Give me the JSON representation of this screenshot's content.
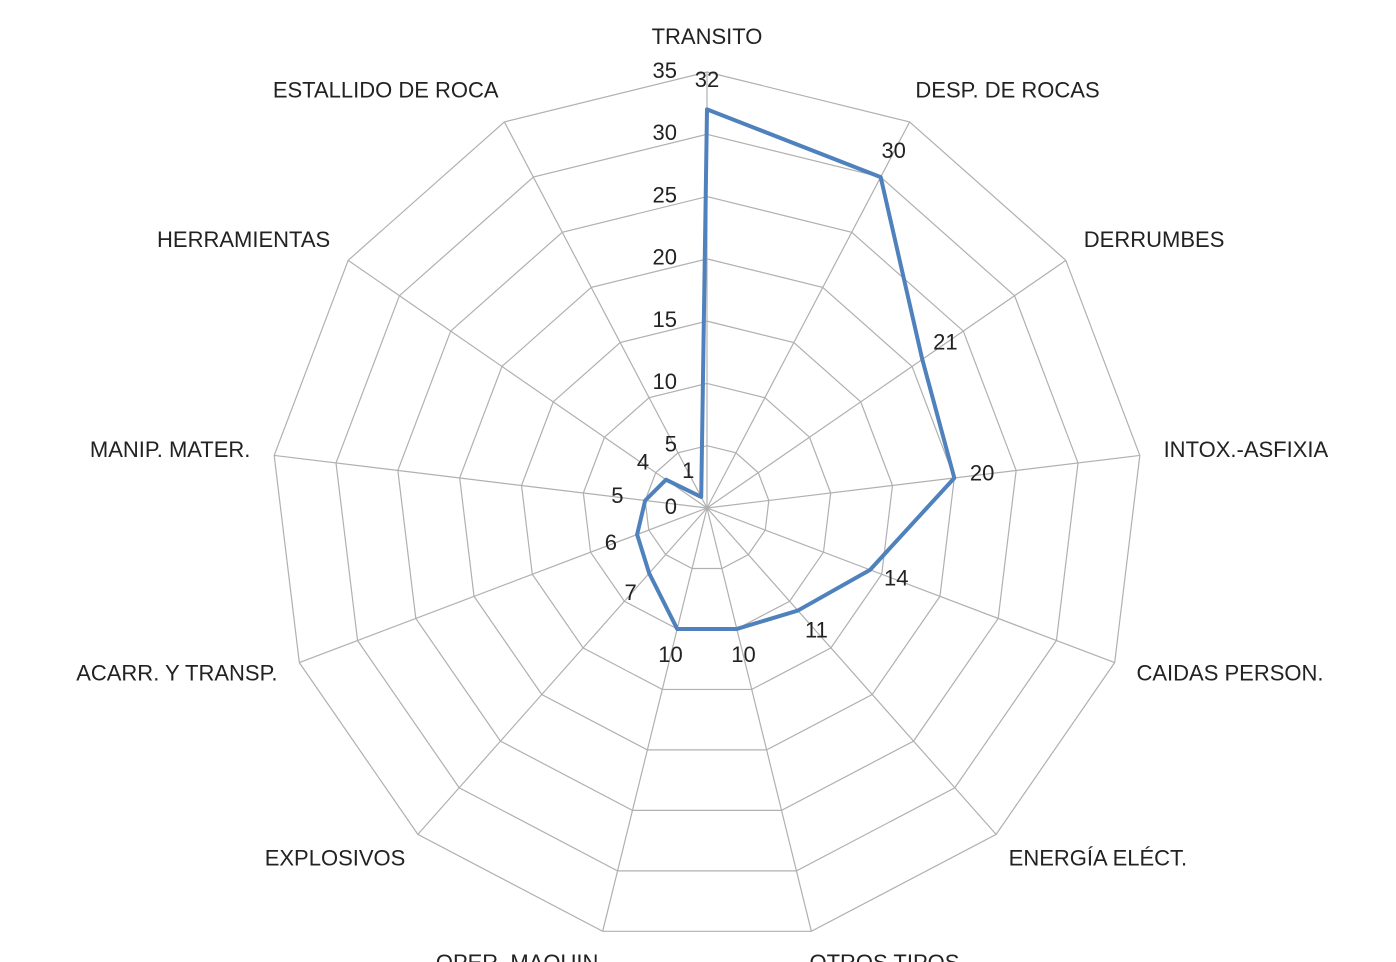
{
  "chart_data": {
    "type": "radar",
    "categories": [
      "TRANSITO",
      "DESP. DE ROCAS",
      "DERRUMBES",
      "INTOX.-ASFIXIA",
      "CAIDAS PERSON.",
      "ENERGÍA ELÉCT.",
      "OTROS TIPOS",
      "OPER. MAQUIN.",
      "EXPLOSIVOS",
      "ACARR. Y TRANSP.",
      "MANIP. MATER.",
      "HERRAMIENTAS",
      "ESTALLIDO DE ROCA"
    ],
    "values": [
      32,
      30,
      21,
      20,
      14,
      11,
      10,
      10,
      7,
      6,
      5,
      4,
      1
    ],
    "color": "#4f81bd",
    "ylim": [
      0,
      35
    ],
    "yticks": [
      0,
      5,
      10,
      15,
      20,
      25,
      30,
      35
    ],
    "grid": true
  }
}
